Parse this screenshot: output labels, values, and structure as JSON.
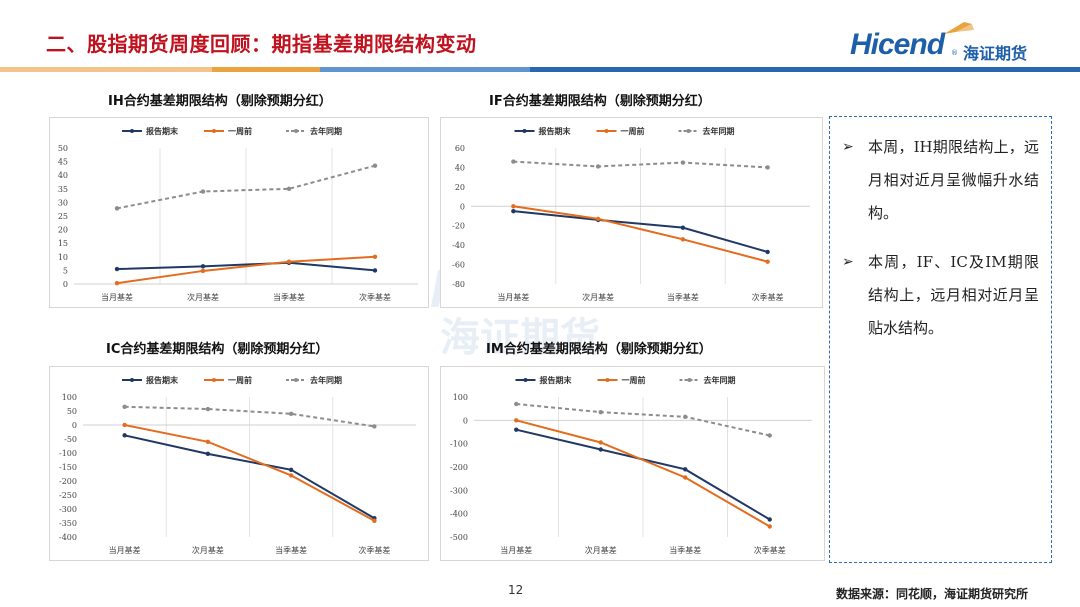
{
  "slide": {
    "title": "二、股指期货周度回顾：期指基差期限结构变动",
    "page_number": "12",
    "source": "数据来源：同花顺，海证期货研究所"
  },
  "logo": {
    "word": "Hicend",
    "reg": "®",
    "cn": "海证期货",
    "brand_color": "#1d5fa8"
  },
  "colors": {
    "title_red": "#c0121e",
    "series_report": "#1f3864",
    "series_week": "#e36c1f",
    "series_lastyear": "#8c8c8c",
    "box_border": "#2f6cb3"
  },
  "notes": [
    {
      "arrow": "➢",
      "text": "本周，IH期限结构上，远月相对近月呈微幅升水结构。"
    },
    {
      "arrow": "➢",
      "text": "本周，IF、IC及IM期限结构上，远月相对近月呈贴水结构。"
    }
  ],
  "chart_data": [
    {
      "type": "line",
      "title": "IH合约基差期限结构（剔除预期分红）",
      "categories": [
        "当月基差",
        "次月基差",
        "当季基差",
        "次季基差"
      ],
      "series": [
        {
          "name": "报告期末",
          "values": [
            5.5,
            6.5,
            7.8,
            5.0
          ]
        },
        {
          "name": "一周前",
          "values": [
            0.3,
            4.8,
            8.2,
            10.0
          ]
        },
        {
          "name": "去年同期",
          "values": [
            27.8,
            34.0,
            35.0,
            43.5
          ]
        }
      ],
      "ylim": [
        0,
        50
      ],
      "yticks": [
        0,
        5,
        10,
        15,
        20,
        25,
        30,
        35,
        40,
        45,
        50
      ],
      "grid": "vertical",
      "legend": "top"
    },
    {
      "type": "line",
      "title": "IF合约基差期限结构（剔除预期分红）",
      "categories": [
        "当月基差",
        "次月基差",
        "当季基差",
        "次季基差"
      ],
      "series": [
        {
          "name": "报告期末",
          "values": [
            -5,
            -14,
            -22,
            -47
          ]
        },
        {
          "name": "一周前",
          "values": [
            0,
            -13,
            -34,
            -57
          ]
        },
        {
          "name": "去年同期",
          "values": [
            46,
            41,
            45,
            40
          ]
        }
      ],
      "ylim": [
        -80,
        60
      ],
      "yticks": [
        -80,
        -60,
        -40,
        -20,
        0,
        20,
        40,
        60
      ],
      "grid": "vertical",
      "legend": "top"
    },
    {
      "type": "line",
      "title": "IC合约基差期限结构（剔除预期分红）",
      "categories": [
        "当月基差",
        "次月基差",
        "当季基差",
        "次季基差"
      ],
      "series": [
        {
          "name": "报告期末",
          "values": [
            -37,
            -103,
            -160,
            -333
          ]
        },
        {
          "name": "一周前",
          "values": [
            0,
            -60,
            -180,
            -342
          ]
        },
        {
          "name": "去年同期",
          "values": [
            65,
            57,
            40,
            -5
          ]
        }
      ],
      "ylim": [
        -400,
        100
      ],
      "yticks": [
        -400,
        -350,
        -300,
        -250,
        -200,
        -150,
        -100,
        -50,
        0,
        50,
        100
      ],
      "grid": "vertical",
      "legend": "top"
    },
    {
      "type": "line",
      "title": "IM合约基差期限结构（剔除预期分红）",
      "categories": [
        "当月基差",
        "次月基差",
        "当季基差",
        "次季基差"
      ],
      "series": [
        {
          "name": "报告期末",
          "values": [
            -40,
            -125,
            -210,
            -425
          ]
        },
        {
          "name": "一周前",
          "values": [
            0,
            -95,
            -245,
            -455
          ]
        },
        {
          "name": "去年同期",
          "values": [
            70,
            35,
            15,
            -65
          ]
        }
      ],
      "ylim": [
        -500,
        100
      ],
      "yticks": [
        -500,
        -400,
        -300,
        -200,
        -100,
        0,
        100
      ],
      "grid": "vertical",
      "legend": "top"
    }
  ]
}
